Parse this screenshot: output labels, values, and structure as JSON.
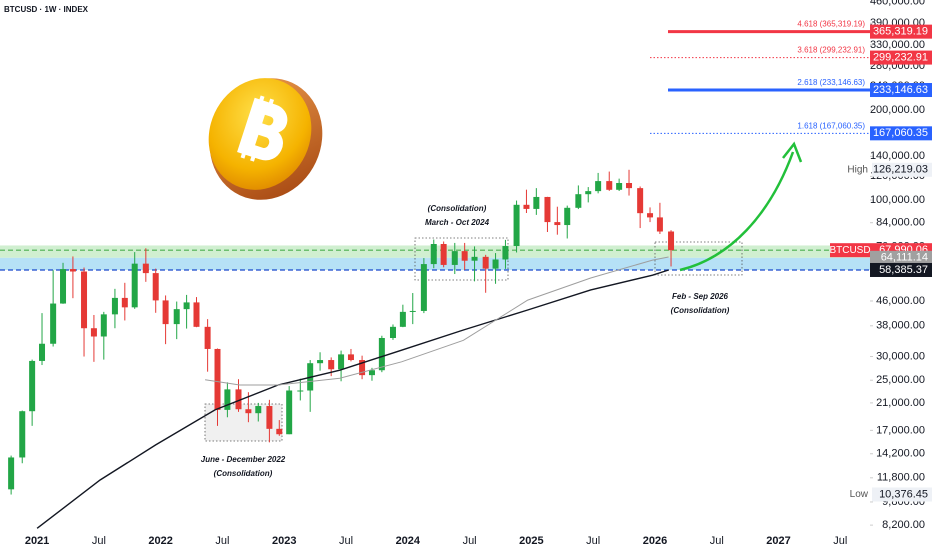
{
  "chart_data": {
    "type": "candlestick",
    "title": "BTCUSD · 1W · INDEX",
    "log_scale": true,
    "grid": false,
    "up_color": "#22a646",
    "down_color": "#e53935",
    "x": [
      2020.79,
      2020.88,
      2020.96,
      2021.04,
      2021.13,
      2021.21,
      2021.29,
      2021.38,
      2021.46,
      2021.54,
      2021.63,
      2021.71,
      2021.79,
      2021.88,
      2021.96,
      2022.04,
      2022.13,
      2022.21,
      2022.29,
      2022.38,
      2022.46,
      2022.54,
      2022.63,
      2022.71,
      2022.79,
      2022.88,
      2022.96,
      2023.04,
      2023.13,
      2023.21,
      2023.29,
      2023.38,
      2023.46,
      2023.54,
      2023.63,
      2023.71,
      2023.79,
      2023.88,
      2023.96,
      2024.04,
      2024.13,
      2024.21,
      2024.29,
      2024.38,
      2024.46,
      2024.54,
      2024.63,
      2024.71,
      2024.79,
      2024.88,
      2024.96,
      2025.04,
      2025.13,
      2025.21,
      2025.29,
      2025.38,
      2025.46,
      2025.54,
      2025.63,
      2025.71,
      2025.79,
      2025.88,
      2025.96,
      2026.04,
      2026.13
    ],
    "open": [
      10800,
      13800,
      19700,
      29000,
      33100,
      45100,
      58800,
      57700,
      37300,
      35000,
      41500,
      47100,
      43800,
      61300,
      57000,
      46200,
      38500,
      43200,
      45500,
      37700,
      31800,
      19900,
      23300,
      20000,
      19400,
      20500,
      17200,
      16500,
      23100,
      23100,
      28500,
      29200,
      27200,
      30500,
      29200,
      26000,
      27000,
      34600,
      37700,
      42300,
      42600,
      61100,
      71300,
      60700,
      67500,
      62700,
      64600,
      59000,
      63300,
      70200,
      96400,
      93400,
      102400,
      84400,
      82500,
      94200,
      104600,
      107100,
      115700,
      108200,
      114000,
      109600,
      90400,
      87500,
      78500
    ],
    "high": [
      14000,
      19800,
      29300,
      41900,
      58300,
      61700,
      64800,
      59500,
      41300,
      42300,
      50500,
      52900,
      67000,
      69000,
      59000,
      48000,
      45800,
      48200,
      47400,
      40000,
      31900,
      24600,
      25200,
      22800,
      21000,
      21500,
      18400,
      23900,
      25300,
      29200,
      31000,
      29800,
      31400,
      31800,
      30200,
      27500,
      35200,
      38400,
      44700,
      48900,
      64000,
      73800,
      72700,
      71900,
      71900,
      70000,
      65600,
      66500,
      73600,
      99600,
      108300,
      109600,
      102500,
      95000,
      95800,
      111900,
      110500,
      123200,
      124500,
      117900,
      126219.03,
      111000,
      94500,
      97900,
      79300
    ],
    "low": [
      10376.45,
      13200,
      17600,
      28100,
      32400,
      45000,
      47000,
      30000,
      28800,
      29300,
      37300,
      39600,
      43300,
      53300,
      42000,
      33000,
      34300,
      37200,
      37600,
      26700,
      17600,
      18800,
      19600,
      18100,
      18200,
      15500,
      16300,
      16500,
      21400,
      19600,
      26900,
      25800,
      24800,
      28900,
      25200,
      24900,
      26600,
      34100,
      37600,
      38500,
      41900,
      59200,
      59600,
      56600,
      58400,
      53500,
      49000,
      52500,
      58900,
      66800,
      90500,
      89200,
      78200,
      76600,
      74400,
      93300,
      98200,
      105300,
      107300,
      107200,
      103500,
      80600,
      84400,
      77000,
      60000
    ],
    "close": [
      13800,
      19700,
      29000,
      33100,
      45100,
      58800,
      57700,
      37300,
      35000,
      41500,
      47100,
      43800,
      61300,
      57000,
      46200,
      38500,
      43200,
      45500,
      37700,
      31800,
      19900,
      23300,
      20000,
      19400,
      20500,
      17200,
      16500,
      23100,
      23100,
      28500,
      29200,
      27200,
      30500,
      29200,
      26000,
      27000,
      34600,
      37700,
      42300,
      42600,
      61100,
      71300,
      60700,
      67500,
      62700,
      64600,
      59000,
      63300,
      70200,
      96400,
      93400,
      102400,
      84400,
      82500,
      94200,
      104600,
      107100,
      115700,
      108200,
      114000,
      109600,
      90400,
      87500,
      78500,
      67990.06
    ],
    "moving_averages": [
      {
        "color": "#131722",
        "x": [
          2021.0,
          2021.51,
          2021.96,
          2022.44,
          2022.95,
          2023.45,
          2023.95,
          2024.45,
          2024.97,
          2025.48,
          2025.98,
          2026.11
        ],
        "values": [
          8000,
          11600,
          15200,
          19900,
          24100,
          27000,
          31500,
          36800,
          42900,
          50100,
          56100,
          58400
        ]
      },
      {
        "color": "#9e9e9e",
        "x": [
          2022.36,
          2022.64,
          2022.95,
          2023.45,
          2023.95,
          2024.45,
          2024.97,
          2025.48,
          2025.98,
          2026.11
        ],
        "values": [
          25100,
          24100,
          24100,
          25400,
          28800,
          34000,
          46300,
          54900,
          63000,
          64500
        ]
      }
    ],
    "zones": [
      {
        "from": 64111.14,
        "to": 70500,
        "color": "#c8ecc8"
      },
      {
        "from": 58385.37,
        "to": 64111.14,
        "color": "#a9dcf5"
      }
    ],
    "fib_levels": [
      {
        "label": "4.618 (365,319.19)",
        "value": 365319.19,
        "price_label": "365,319.19",
        "color": "#f23645",
        "style": "solid"
      },
      {
        "label": "3.618 (299,232.91)",
        "value": 299232.91,
        "price_label": "299,232.91",
        "color": "#f23645",
        "style": "dotted"
      },
      {
        "label": "2.618 (233,146.63)",
        "value": 233146.63,
        "price_label": "233,146.63",
        "color": "#2962ff",
        "style": "solid"
      },
      {
        "label": "1.618 (167,060.35)",
        "value": 167060.35,
        "price_label": "167,060.35",
        "color": "#2962ff",
        "style": "dotted"
      }
    ],
    "price_markers": [
      {
        "name": "BTCUSD",
        "value": 67990.06,
        "label": "67,990.06",
        "color": "#f23645",
        "line": "#4caf50"
      },
      {
        "value": 64111.14,
        "label": "64,111.14",
        "color": "#a0a0a0"
      },
      {
        "value": 58385.37,
        "label": "58,385.37",
        "color": "#131722",
        "line": "#1848cc"
      }
    ],
    "extremes": [
      {
        "name": "High",
        "value": 126219.03,
        "label": "126,219.03"
      },
      {
        "name": "Low",
        "value": 10376.45,
        "label": "10,376.45"
      }
    ],
    "annotations": [
      {
        "lines": [
          "(Consolidation)",
          "March - Oct 2024"
        ]
      },
      {
        "lines": [
          "June - December 2022",
          "(Consolidation)"
        ]
      },
      {
        "lines": [
          "Feb - Sep 2026",
          "(Consolidation)"
        ]
      }
    ],
    "xlim": [
      2020.7,
      2027.74
    ],
    "xticks": [
      {
        "value": 2021.0,
        "label": "2021"
      },
      {
        "value": 2021.5,
        "label": "Jul"
      },
      {
        "value": 2022.0,
        "label": "2022"
      },
      {
        "value": 2022.5,
        "label": "Jul"
      },
      {
        "value": 2023.0,
        "label": "2023"
      },
      {
        "value": 2023.5,
        "label": "Jul"
      },
      {
        "value": 2024.0,
        "label": "2024"
      },
      {
        "value": 2024.5,
        "label": "Jul"
      },
      {
        "value": 2025.0,
        "label": "2025"
      },
      {
        "value": 2025.5,
        "label": "Jul"
      },
      {
        "value": 2026.0,
        "label": "2026"
      },
      {
        "value": 2026.5,
        "label": "Jul"
      },
      {
        "value": 2027.0,
        "label": "2027"
      },
      {
        "value": 2027.5,
        "label": "Jul"
      }
    ],
    "ylim": [
      7600,
      466000
    ],
    "yticks": [
      {
        "value": 460000,
        "label": "460,000.00"
      },
      {
        "value": 390000,
        "label": "390,000.00"
      },
      {
        "value": 330000,
        "label": "330,000.00"
      },
      {
        "value": 280000,
        "label": "280,000.00"
      },
      {
        "value": 240000,
        "label": "240,000.00"
      },
      {
        "value": 200000,
        "label": "200,000.00"
      },
      {
        "value": 170000,
        "label": "170,000.00"
      },
      {
        "value": 140000,
        "label": "140,000.00"
      },
      {
        "value": 120000,
        "label": "120,000.00"
      },
      {
        "value": 100000,
        "label": "100,000.00"
      },
      {
        "value": 84000,
        "label": "84,000.00"
      },
      {
        "value": 70000,
        "label": "70,000.00"
      },
      {
        "value": 58000,
        "label": "58,000.00"
      },
      {
        "value": 46000,
        "label": "46,000.00"
      },
      {
        "value": 38000,
        "label": "38,000.00"
      },
      {
        "value": 30000,
        "label": "30,000.00"
      },
      {
        "value": 25000,
        "label": "25,000.00"
      },
      {
        "value": 21000,
        "label": "21,000.00"
      },
      {
        "value": 17000,
        "label": "17,000.00"
      },
      {
        "value": 14200,
        "label": "14,200.00"
      },
      {
        "value": 11800,
        "label": "11,800.00"
      },
      {
        "value": 9800,
        "label": "9,800.00"
      },
      {
        "value": 8200,
        "label": "8,200.00"
      }
    ]
  }
}
